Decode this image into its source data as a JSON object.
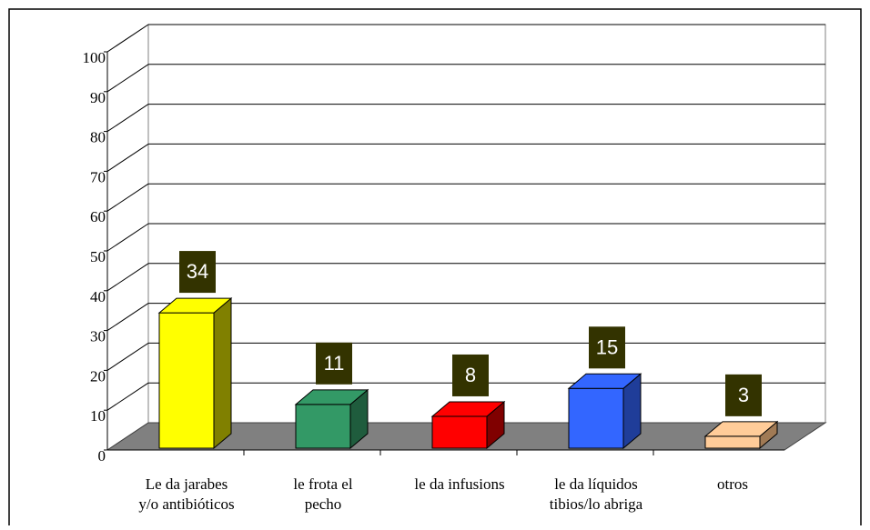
{
  "chart_data": {
    "type": "bar3d",
    "categories": [
      [
        "Le da jarabes",
        "y/o antibióticos"
      ],
      [
        "le frota el",
        "pecho"
      ],
      [
        "le da infusions"
      ],
      [
        "le da líquidos",
        "tibios/lo abriga"
      ],
      [
        "otros"
      ]
    ],
    "values": [
      34,
      11,
      8,
      15,
      3
    ],
    "colors": [
      "#ffff00",
      "#339966",
      "#ff0000",
      "#3366ff",
      "#ffcc99"
    ],
    "side_colors": [
      "#808000",
      "#1f5c3d",
      "#800000",
      "#1f3d99",
      "#a07a55"
    ],
    "ylim": [
      0,
      100
    ],
    "yticks": [
      0,
      10,
      20,
      30,
      40,
      50,
      60,
      70,
      80,
      90,
      100
    ],
    "grid": true
  }
}
